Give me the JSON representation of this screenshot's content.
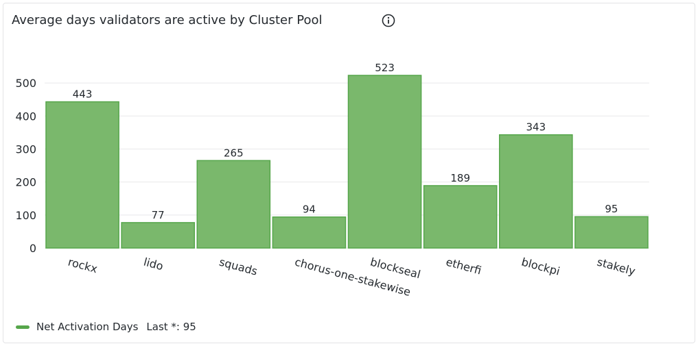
{
  "panel": {
    "title": "Average days validators are active by Cluster Pool",
    "info_icon": "info-circle-icon"
  },
  "colors": {
    "bar_fill": "#7ab86c",
    "bar_stroke": "#56a64b",
    "grid": "#e8e8ea",
    "text": "#24292e"
  },
  "legend": {
    "series_name": "Net Activation Days",
    "stat_label": "Last *:",
    "stat_value": "95"
  },
  "chart_data": {
    "type": "bar",
    "categories": [
      "rockx",
      "lido",
      "squads",
      "chorus-one-stakewise",
      "blockseal",
      "etherfi",
      "blockpi",
      "stakely"
    ],
    "series": [
      {
        "name": "Net Activation Days",
        "values": [
          443,
          77,
          265,
          94,
          523,
          189,
          343,
          95
        ]
      }
    ],
    "title": "Average days validators are active by Cluster Pool",
    "xlabel": "",
    "ylabel": "",
    "ylim": [
      0,
      550
    ],
    "yticks": [
      0,
      100,
      200,
      300,
      400,
      500
    ],
    "grid": true,
    "legend": "bottom-left",
    "data_labels": true
  }
}
